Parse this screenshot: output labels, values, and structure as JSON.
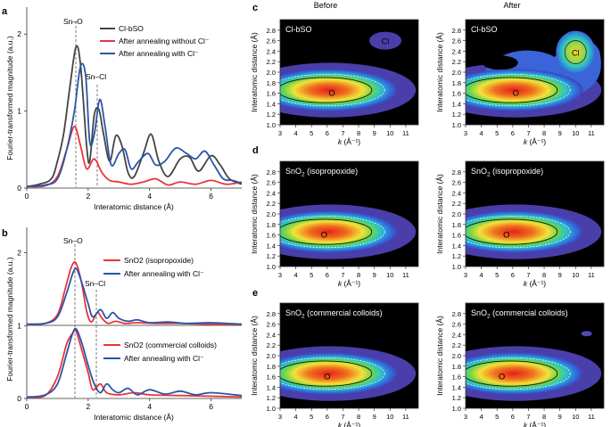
{
  "panel_letters": {
    "a": "a",
    "b": "b",
    "c": "c",
    "d": "d",
    "e": "e"
  },
  "colors": {
    "black": "#444444",
    "red": "#e8353b",
    "blue": "#2b55a8"
  },
  "panel_a": {
    "ylabel": "Fourier-transformed magnitude (a.u.)",
    "xlabel": "Interatomic distance (Å)",
    "yticks": [
      "0",
      "1",
      "2"
    ],
    "xticks": [
      "0",
      "2",
      "4",
      "6"
    ],
    "annotations": [
      "Sn–O",
      "Sn–Cl"
    ],
    "legend": [
      "Cl-bSO",
      "After annealing without Cl⁻",
      "After annealing with Cl⁻"
    ]
  },
  "panel_b": {
    "ylabel": "Fourier-transformed magnitude (a.u.)",
    "xlabel": "Interatomic distance (Å)",
    "yticks": [
      "0",
      "1",
      "2"
    ],
    "xticks": [
      "0",
      "2",
      "4",
      "6"
    ],
    "annotations": [
      "Sn–O",
      "Sn–Cl"
    ],
    "legend_top": [
      "SnO2 (isopropoxide)",
      "After annealing with Cl⁻"
    ],
    "legend_bottom": [
      "SnO2 (commercial colloids)",
      "After annealing with Cl⁻"
    ]
  },
  "column_headers": {
    "before": "Before",
    "after": "After"
  },
  "contour_axes": {
    "ylabel": "Interatomic distance (Å)",
    "xlabel": "k (Å⁻¹)",
    "yticks": [
      "1.0",
      "1.2",
      "1.4",
      "1.6",
      "1.8",
      "2.0",
      "2.2",
      "2.4",
      "2.6",
      "2.8"
    ],
    "xticks": [
      "3",
      "4",
      "5",
      "6",
      "7",
      "8",
      "9",
      "10",
      "11"
    ]
  },
  "contour_titles": {
    "c_before": "Cl-bSO",
    "c_after": "Cl-bSO",
    "d_before": "SnO2 (isopropoxide)",
    "d_after": "SnO2 (isopropoxide)",
    "e_before": "SnO2 (commercial colloids)",
    "e_after": "SnO2 (commercial colloids)"
  },
  "contour_labels": {
    "O": "O",
    "Cl": "Cl"
  },
  "chart_data": [
    {
      "type": "line",
      "title": "a",
      "xlabel": "Interatomic distance (Å)",
      "ylabel": "Fourier-transformed magnitude (a.u.)",
      "xlim": [
        0,
        7
      ],
      "ylim": [
        0,
        2.35
      ],
      "series": [
        {
          "name": "Cl-bSO",
          "points": [
            [
              0,
              0.02
            ],
            [
              0.4,
              0.05
            ],
            [
              0.8,
              0.12
            ],
            [
              1.0,
              0.35
            ],
            [
              1.2,
              0.7
            ],
            [
              1.4,
              1.3
            ],
            [
              1.6,
              1.83
            ],
            [
              1.75,
              1.6
            ],
            [
              1.95,
              0.55
            ],
            [
              2.05,
              0.35
            ],
            [
              2.2,
              0.95
            ],
            [
              2.35,
              1.02
            ],
            [
              2.5,
              0.7
            ],
            [
              2.7,
              0.35
            ],
            [
              2.9,
              0.68
            ],
            [
              3.1,
              0.55
            ],
            [
              3.3,
              0.2
            ],
            [
              3.5,
              0.15
            ],
            [
              3.8,
              0.45
            ],
            [
              4.05,
              0.7
            ],
            [
              4.3,
              0.35
            ],
            [
              4.6,
              0.15
            ],
            [
              5.0,
              0.38
            ],
            [
              5.3,
              0.4
            ],
            [
              5.6,
              0.22
            ],
            [
              6.0,
              0.42
            ],
            [
              6.3,
              0.3
            ],
            [
              6.6,
              0.12
            ],
            [
              7.0,
              0.05
            ]
          ]
        },
        {
          "name": "After annealing without Cl⁻",
          "points": [
            [
              0,
              0.02
            ],
            [
              0.6,
              0.03
            ],
            [
              1.0,
              0.15
            ],
            [
              1.3,
              0.5
            ],
            [
              1.55,
              0.8
            ],
            [
              1.75,
              0.55
            ],
            [
              1.95,
              0.25
            ],
            [
              2.2,
              0.38
            ],
            [
              2.45,
              0.2
            ],
            [
              2.7,
              0.1
            ],
            [
              3.0,
              0.08
            ],
            [
              3.4,
              0.05
            ],
            [
              3.8,
              0.08
            ],
            [
              4.2,
              0.12
            ],
            [
              4.6,
              0.04
            ],
            [
              5.0,
              0.08
            ],
            [
              5.5,
              0.05
            ],
            [
              6.0,
              0.1
            ],
            [
              6.5,
              0.05
            ],
            [
              7.0,
              0.08
            ]
          ]
        },
        {
          "name": "After annealing with Cl⁻",
          "points": [
            [
              0,
              0.02
            ],
            [
              0.6,
              0.04
            ],
            [
              1.0,
              0.12
            ],
            [
              1.3,
              0.5
            ],
            [
              1.55,
              1.0
            ],
            [
              1.75,
              1.58
            ],
            [
              1.92,
              1.45
            ],
            [
              2.05,
              0.6
            ],
            [
              2.2,
              0.7
            ],
            [
              2.38,
              1.15
            ],
            [
              2.55,
              0.8
            ],
            [
              2.75,
              0.3
            ],
            [
              3.0,
              0.45
            ],
            [
              3.2,
              0.5
            ],
            [
              3.4,
              0.25
            ],
            [
              3.65,
              0.35
            ],
            [
              3.95,
              0.45
            ],
            [
              4.2,
              0.3
            ],
            [
              4.5,
              0.35
            ],
            [
              4.85,
              0.52
            ],
            [
              5.2,
              0.45
            ],
            [
              5.5,
              0.38
            ],
            [
              5.8,
              0.48
            ],
            [
              6.1,
              0.3
            ],
            [
              6.4,
              0.12
            ],
            [
              6.7,
              0.1
            ],
            [
              7.0,
              0.06
            ]
          ]
        }
      ]
    },
    {
      "type": "line",
      "title": "b",
      "xlabel": "Interatomic distance (Å)",
      "ylabel": "Fourier-transformed magnitude (a.u.)",
      "xlim": [
        0,
        7
      ],
      "ylim": [
        0,
        2.35
      ],
      "series": [
        {
          "name": "SnO2 (isopropoxide)",
          "points": [
            [
              0,
              1.02
            ],
            [
              0.6,
              1.03
            ],
            [
              1.0,
              1.15
            ],
            [
              1.25,
              1.5
            ],
            [
              1.45,
              1.8
            ],
            [
              1.6,
              1.86
            ],
            [
              1.78,
              1.6
            ],
            [
              1.95,
              1.2
            ],
            [
              2.1,
              1.05
            ],
            [
              2.3,
              1.18
            ],
            [
              2.45,
              1.1
            ],
            [
              2.65,
              1.03
            ],
            [
              2.9,
              1.06
            ],
            [
              3.2,
              1.03
            ],
            [
              3.6,
              1.04
            ],
            [
              4.2,
              1.03
            ],
            [
              5.0,
              1.03
            ],
            [
              6.0,
              1.02
            ],
            [
              7.0,
              1.02
            ]
          ]
        },
        {
          "name": "After annealing with Cl⁻ (isopropoxide)",
          "points": [
            [
              0,
              1.02
            ],
            [
              0.6,
              1.03
            ],
            [
              1.0,
              1.12
            ],
            [
              1.3,
              1.45
            ],
            [
              1.5,
              1.72
            ],
            [
              1.62,
              1.78
            ],
            [
              1.8,
              1.58
            ],
            [
              2.0,
              1.3
            ],
            [
              2.15,
              1.12
            ],
            [
              2.4,
              1.22
            ],
            [
              2.6,
              1.1
            ],
            [
              2.8,
              1.18
            ],
            [
              3.0,
              1.1
            ],
            [
              3.3,
              1.06
            ],
            [
              3.6,
              1.08
            ],
            [
              4.0,
              1.04
            ],
            [
              4.6,
              1.05
            ],
            [
              5.2,
              1.03
            ],
            [
              6.0,
              1.04
            ],
            [
              7.0,
              1.02
            ]
          ]
        },
        {
          "name": "SnO2 (commercial colloids)",
          "points": [
            [
              0,
              0.02
            ],
            [
              0.6,
              0.04
            ],
            [
              1.0,
              0.3
            ],
            [
              1.3,
              0.75
            ],
            [
              1.5,
              0.9
            ],
            [
              1.6,
              0.93
            ],
            [
              1.8,
              0.65
            ],
            [
              2.0,
              0.35
            ],
            [
              2.15,
              0.12
            ],
            [
              2.4,
              0.2
            ],
            [
              2.6,
              0.08
            ],
            [
              3.0,
              0.05
            ],
            [
              3.5,
              0.08
            ],
            [
              4.0,
              0.05
            ],
            [
              5.0,
              0.04
            ],
            [
              6.0,
              0.03
            ],
            [
              7.0,
              0.02
            ]
          ]
        },
        {
          "name": "After annealing with Cl⁻ (colloids)",
          "points": [
            [
              0,
              0.02
            ],
            [
              0.6,
              0.05
            ],
            [
              1.0,
              0.2
            ],
            [
              1.3,
              0.62
            ],
            [
              1.5,
              0.9
            ],
            [
              1.62,
              0.95
            ],
            [
              1.8,
              0.75
            ],
            [
              2.0,
              0.45
            ],
            [
              2.2,
              0.2
            ],
            [
              2.4,
              0.08
            ],
            [
              2.6,
              0.2
            ],
            [
              2.8,
              0.12
            ],
            [
              3.0,
              0.08
            ],
            [
              3.3,
              0.14
            ],
            [
              3.6,
              0.05
            ],
            [
              4.0,
              0.12
            ],
            [
              4.5,
              0.06
            ],
            [
              5.0,
              0.1
            ],
            [
              5.5,
              0.05
            ],
            [
              6.0,
              0.08
            ],
            [
              7.0,
              0.04
            ]
          ]
        }
      ]
    }
  ]
}
